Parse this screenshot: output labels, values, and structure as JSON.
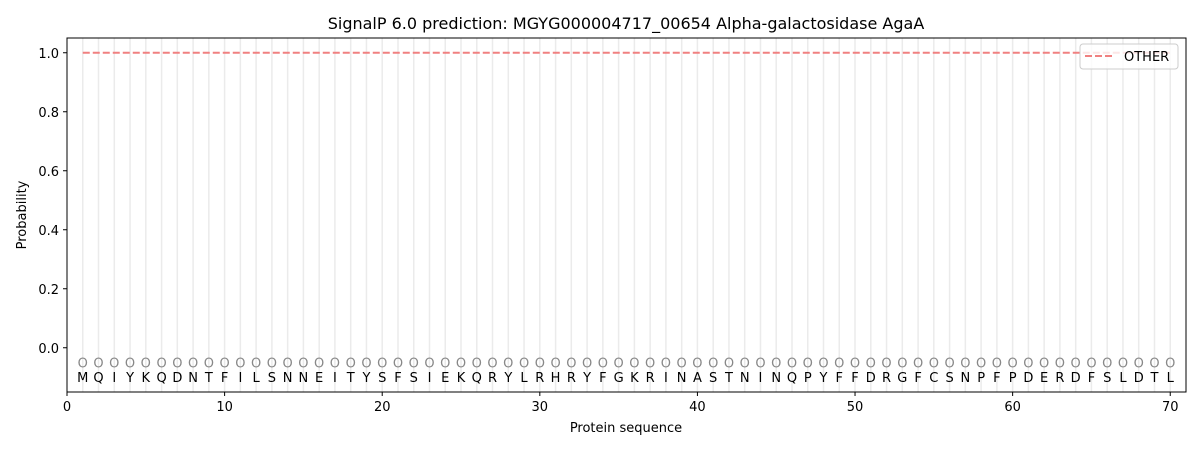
{
  "chart_data": {
    "type": "line",
    "title": "SignalP 6.0 prediction: MGYG000004717_00654 Alpha-galactosidase AgaA",
    "xlabel": "Protein sequence",
    "ylabel": "Probability",
    "xlim": [
      0,
      71
    ],
    "ylim": [
      -0.15,
      1.05
    ],
    "xticks": [
      0,
      10,
      20,
      30,
      40,
      50,
      60,
      70
    ],
    "yticks": [
      0.0,
      0.2,
      0.4,
      0.6,
      0.8,
      1.0
    ],
    "ytick_labels": [
      "0.0",
      "0.2",
      "0.4",
      "0.6",
      "0.8",
      "1.0"
    ],
    "grid": "vertical at each residue",
    "legend_placement": "top-right",
    "sequence": [
      "M",
      "Q",
      "I",
      "Y",
      "K",
      "Q",
      "D",
      "N",
      "T",
      "F",
      "I",
      "L",
      "S",
      "N",
      "N",
      "E",
      "I",
      "T",
      "Y",
      "S",
      "F",
      "S",
      "I",
      "E",
      "K",
      "Q",
      "R",
      "Y",
      "L",
      "R",
      "H",
      "R",
      "Y",
      "F",
      "G",
      "K",
      "R",
      "I",
      "N",
      "A",
      "S",
      "T",
      "N",
      "I",
      "N",
      "Q",
      "P",
      "Y",
      "F",
      "F",
      "D",
      "R",
      "G",
      "F",
      "C",
      "S",
      "N",
      "P",
      "F",
      "P",
      "D",
      "E",
      "R",
      "D",
      "F",
      "S",
      "L",
      "D",
      "T",
      "L"
    ],
    "predicted_label": "O",
    "predicted_marker_y": -0.05,
    "series": [
      {
        "name": "OTHER",
        "color": "#f08080",
        "style": "dashed",
        "x_range": [
          1,
          70
        ],
        "value": 1.0
      }
    ]
  }
}
